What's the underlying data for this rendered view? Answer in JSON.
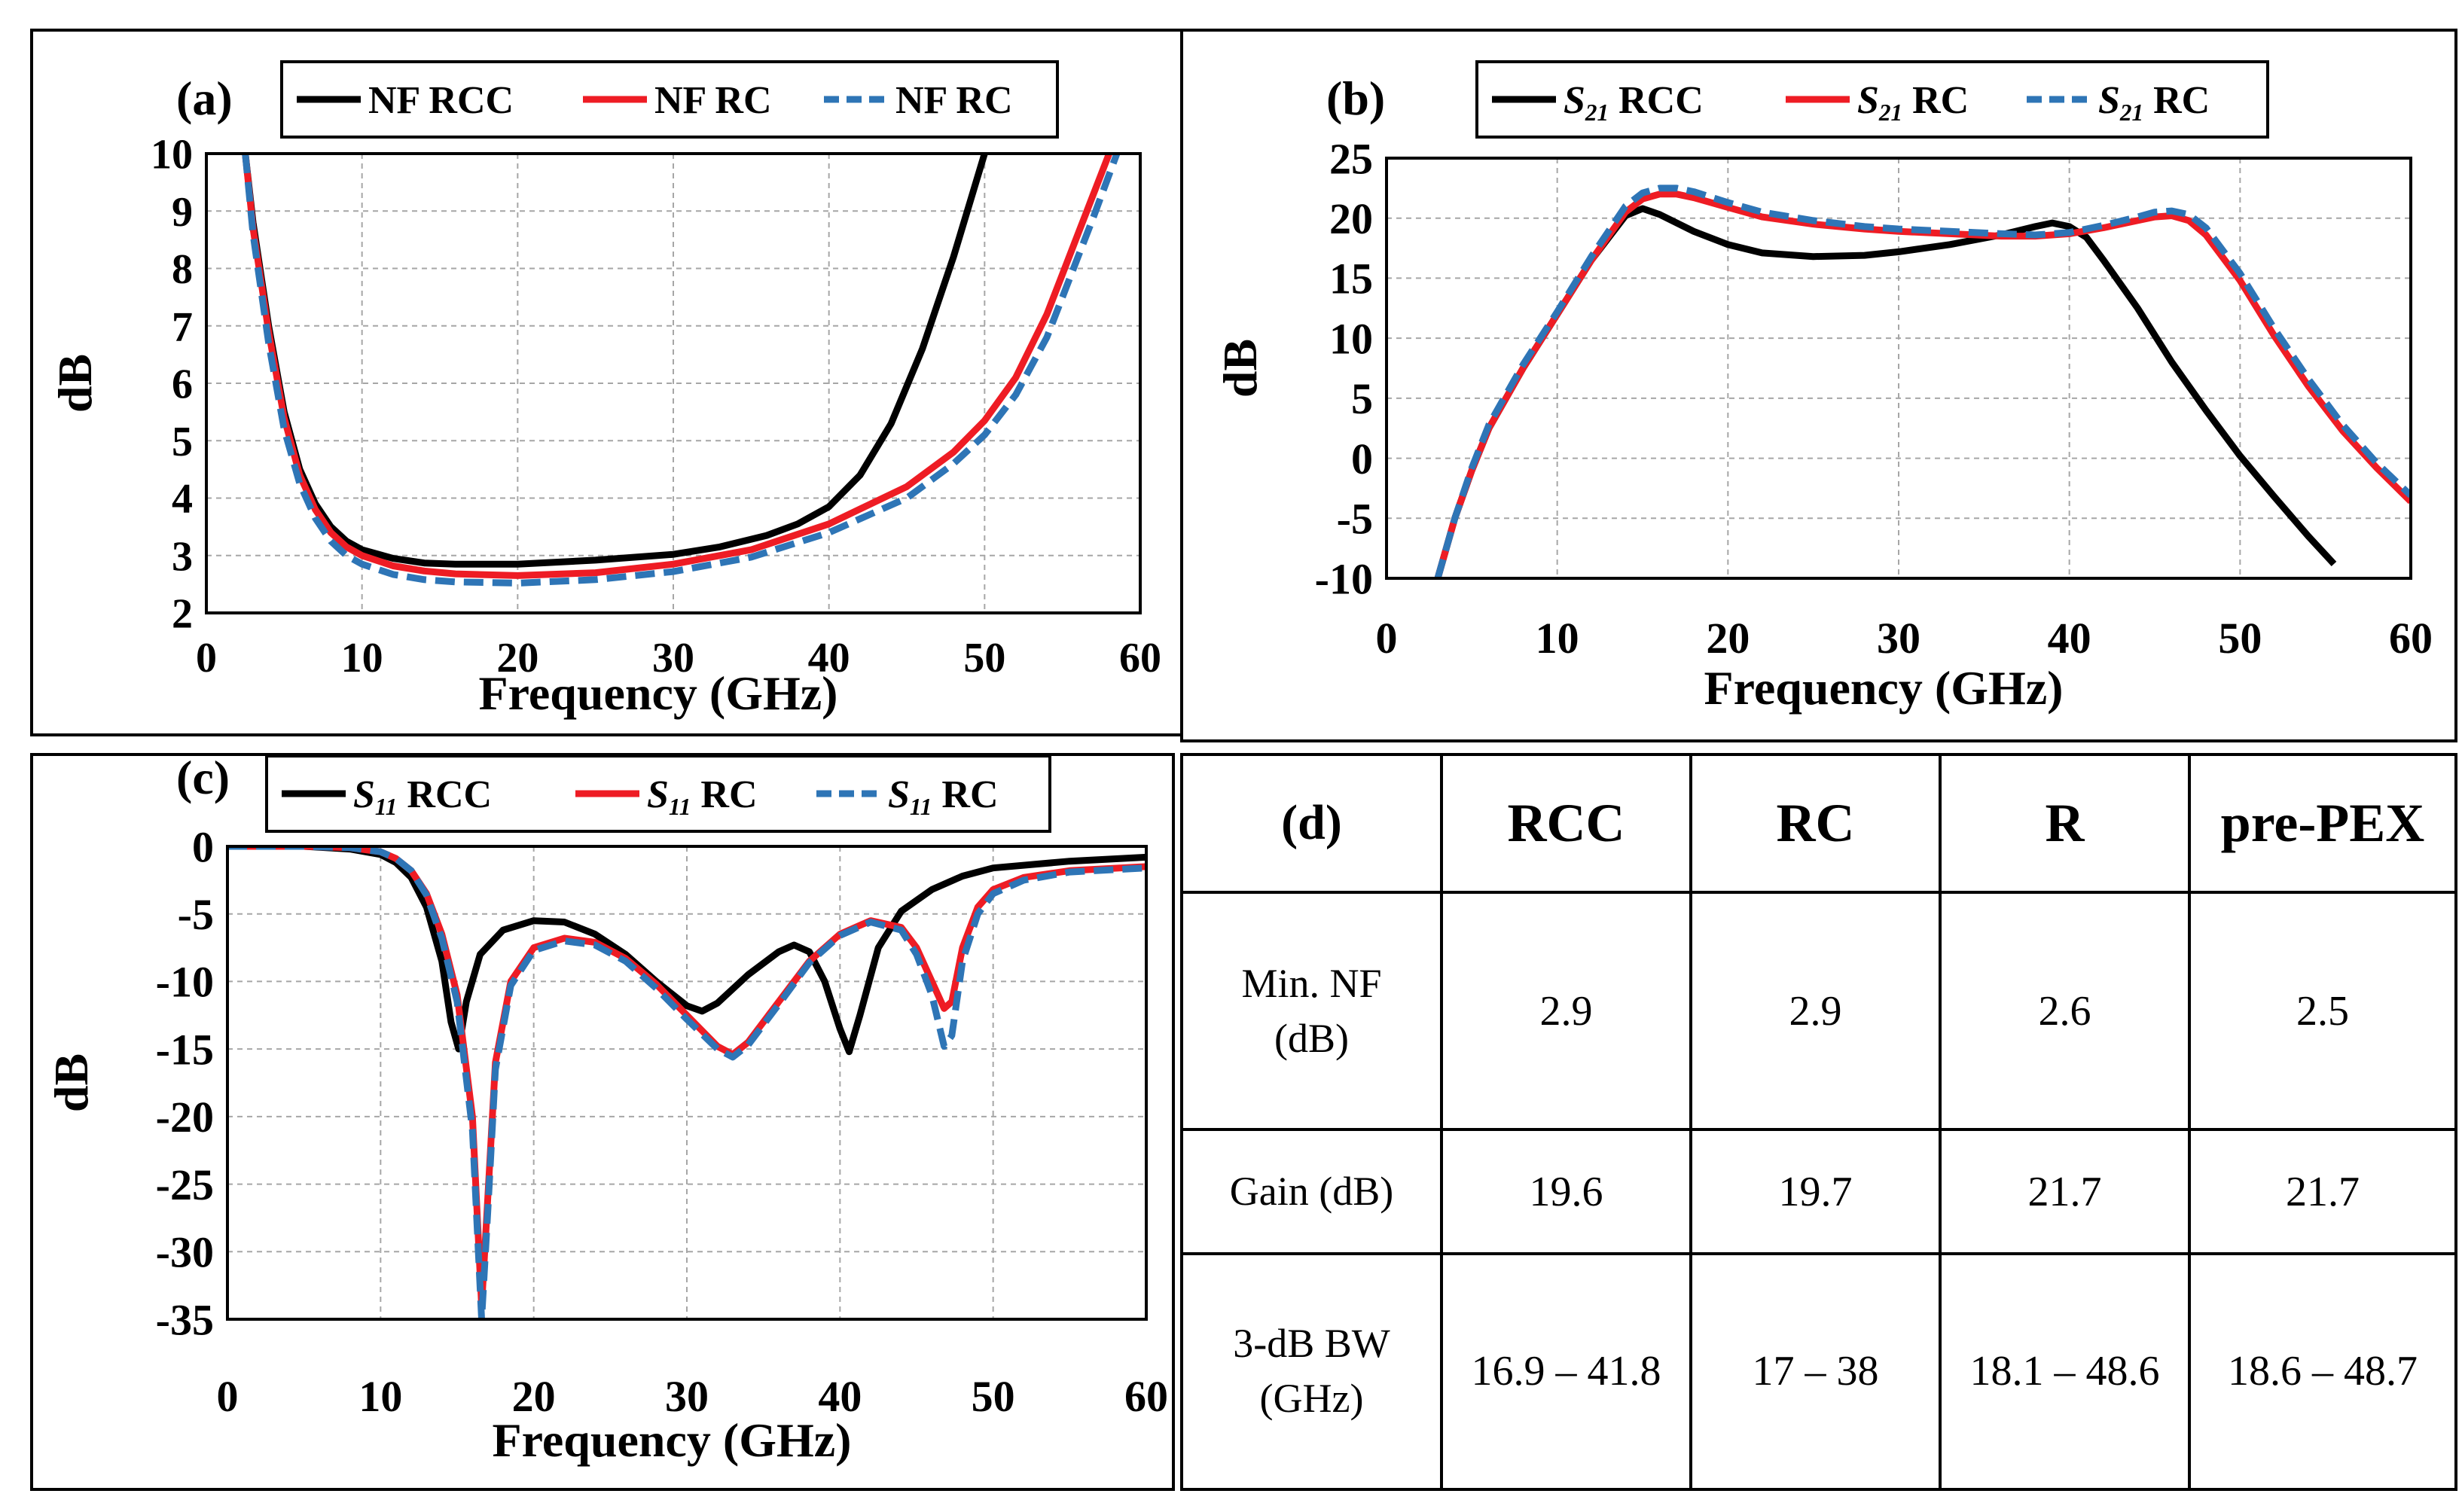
{
  "colors": {
    "rcc": "#000000",
    "rc": "#ee1c24",
    "r": "#2e75b6",
    "grid": "#a6a6a6"
  },
  "chart_data": [
    {
      "panel": "(a)",
      "type": "line",
      "title": "",
      "xlabel": "Frequency (GHz)",
      "ylabel": "dB",
      "xlim": [
        0,
        60
      ],
      "ylim": [
        2,
        10
      ],
      "xticks": [
        0,
        10,
        20,
        30,
        40,
        50,
        60
      ],
      "yticks": [
        2,
        3,
        4,
        5,
        6,
        7,
        8,
        9,
        10
      ],
      "grid": true,
      "legend_position": "top",
      "series": [
        {
          "name": "NF RCC",
          "label_main": "NF RCC",
          "style": "solid",
          "color": "#000000",
          "x": [
            2.5,
            3,
            4,
            5,
            6,
            7,
            8,
            9,
            10,
            12,
            14,
            16,
            20,
            25,
            30,
            33,
            36,
            38,
            40,
            42,
            44,
            46,
            47,
            48,
            49,
            50
          ],
          "y": [
            10,
            8.8,
            7,
            5.5,
            4.5,
            3.9,
            3.5,
            3.25,
            3.1,
            2.95,
            2.87,
            2.85,
            2.85,
            2.92,
            3.02,
            3.15,
            3.35,
            3.55,
            3.85,
            4.4,
            5.3,
            6.6,
            7.4,
            8.2,
            9.1,
            10
          ]
        },
        {
          "name": "NF RC",
          "label_main": "NF RC",
          "style": "solid",
          "color": "#ee1c24",
          "x": [
            2.5,
            3,
            4,
            5,
            6,
            7,
            8,
            9,
            10,
            12,
            14,
            16,
            20,
            25,
            30,
            35,
            40,
            45,
            48,
            50,
            52,
            54,
            55,
            56,
            57,
            58
          ],
          "y": [
            10,
            8.7,
            6.9,
            5.4,
            4.4,
            3.8,
            3.4,
            3.15,
            3.0,
            2.82,
            2.73,
            2.68,
            2.65,
            2.7,
            2.85,
            3.1,
            3.55,
            4.2,
            4.8,
            5.35,
            6.1,
            7.2,
            7.9,
            8.6,
            9.3,
            10
          ]
        },
        {
          "name": "NF RC",
          "label_main": "NF RC",
          "style": "dashed",
          "color": "#2e75b6",
          "x": [
            2.5,
            3,
            4,
            5,
            6,
            7,
            8,
            9,
            10,
            12,
            14,
            16,
            20,
            25,
            30,
            35,
            40,
            45,
            48,
            50,
            52,
            54,
            55,
            56,
            57,
            58.5
          ],
          "y": [
            10,
            8.6,
            6.7,
            5.2,
            4.25,
            3.65,
            3.25,
            3.0,
            2.85,
            2.67,
            2.58,
            2.54,
            2.52,
            2.58,
            2.72,
            2.97,
            3.4,
            4.0,
            4.6,
            5.1,
            5.8,
            6.8,
            7.5,
            8.2,
            8.9,
            10
          ]
        }
      ]
    },
    {
      "panel": "(b)",
      "type": "line",
      "title": "",
      "xlabel": "Frequency (GHz)",
      "ylabel": "dB",
      "xlim": [
        0,
        60
      ],
      "ylim": [
        -10,
        25
      ],
      "xticks": [
        0,
        10,
        20,
        30,
        40,
        50,
        60
      ],
      "yticks": [
        -10,
        -5,
        0,
        5,
        10,
        15,
        20,
        25
      ],
      "grid": true,
      "legend_position": "top",
      "series": [
        {
          "name": "S21 RCC",
          "label_main": "S",
          "label_sub": "21",
          "label_rest": " RCC",
          "style": "solid",
          "color": "#000000",
          "x": [
            3,
            4,
            5,
            6,
            8,
            10,
            12,
            14,
            15,
            16,
            18,
            20,
            22,
            25,
            28,
            30,
            33,
            36,
            38,
            39,
            40,
            41,
            42,
            44,
            46,
            48,
            50,
            52,
            54,
            55.5
          ],
          "y": [
            -10,
            -5,
            -1,
            2.5,
            7.5,
            12,
            16.5,
            20.2,
            20.8,
            20.3,
            18.9,
            17.8,
            17.1,
            16.8,
            16.9,
            17.2,
            17.8,
            18.6,
            19.3,
            19.6,
            19.3,
            18.4,
            16.5,
            12.5,
            8,
            4,
            0.2,
            -3.2,
            -6.5,
            -8.8
          ]
        },
        {
          "name": "S21 RC",
          "label_main": "S",
          "label_sub": "21",
          "label_rest": " RC",
          "style": "solid",
          "color": "#ee1c24",
          "x": [
            3,
            4,
            5,
            6,
            8,
            10,
            12,
            14,
            15,
            16,
            17,
            18,
            20,
            22,
            25,
            28,
            30,
            33,
            36,
            38,
            40,
            42,
            44,
            45,
            46,
            47,
            48,
            50,
            52,
            54,
            56,
            58,
            60
          ],
          "y": [
            -10,
            -5,
            -1,
            2.5,
            7.5,
            12,
            16.5,
            20.5,
            21.6,
            22,
            22,
            21.7,
            20.9,
            20.1,
            19.5,
            19.1,
            18.9,
            18.7,
            18.5,
            18.5,
            18.7,
            19.2,
            19.8,
            20.1,
            20.2,
            19.8,
            18.6,
            14.8,
            10.2,
            6,
            2.3,
            -0.8,
            -3.6
          ]
        },
        {
          "name": "S21  RC",
          "label_main": "S",
          "label_sub": "21",
          "label_rest": "  RC",
          "style": "dashed",
          "color": "#2e75b6",
          "x": [
            3,
            4,
            5,
            6,
            8,
            10,
            12,
            14,
            15,
            16,
            17,
            18,
            20,
            22,
            25,
            28,
            30,
            33,
            36,
            38,
            40,
            42,
            44,
            45,
            46,
            47,
            48,
            50,
            52,
            54,
            56,
            58,
            60
          ],
          "y": [
            -10,
            -5,
            -0.8,
            2.8,
            7.8,
            12.2,
            16.8,
            21,
            22.1,
            22.5,
            22.5,
            22.2,
            21.3,
            20.5,
            19.8,
            19.3,
            19.1,
            18.9,
            18.7,
            18.6,
            18.8,
            19.4,
            20.1,
            20.5,
            20.6,
            20.3,
            19.2,
            15.4,
            10.8,
            6.6,
            2.8,
            -0.4,
            -3.1
          ]
        }
      ]
    },
    {
      "panel": "(c)",
      "type": "line",
      "title": "",
      "xlabel": "Frequency (GHz)",
      "ylabel": "dB",
      "xlim": [
        0,
        60
      ],
      "ylim": [
        -35,
        0
      ],
      "xticks": [
        0,
        10,
        20,
        30,
        40,
        50,
        60
      ],
      "yticks": [
        -35,
        -30,
        -25,
        -20,
        -15,
        -10,
        -5,
        0
      ],
      "grid": true,
      "legend_position": "top",
      "series": [
        {
          "name": "S11 RCC",
          "label_main": "S",
          "label_sub": "11",
          "label_rest": " RCC",
          "style": "solid",
          "color": "#000000",
          "x": [
            0,
            5,
            8,
            10,
            11,
            12,
            13,
            14,
            14.6,
            15.1,
            15.6,
            16.5,
            18,
            20,
            22,
            24,
            26,
            28,
            30,
            31,
            32,
            34,
            36,
            37,
            38,
            39,
            40,
            40.6,
            41.3,
            42.5,
            44,
            46,
            48,
            50,
            55,
            60
          ],
          "y": [
            0,
            0,
            -0.2,
            -0.6,
            -1.2,
            -2.3,
            -4.5,
            -8.5,
            -13,
            -15,
            -11.5,
            -8,
            -6.2,
            -5.5,
            -5.6,
            -6.5,
            -8,
            -10,
            -11.8,
            -12.2,
            -11.6,
            -9.5,
            -7.8,
            -7.3,
            -7.8,
            -10,
            -13.5,
            -15.2,
            -12.5,
            -7.5,
            -4.8,
            -3.2,
            -2.2,
            -1.6,
            -1.1,
            -0.8
          ]
        },
        {
          "name": "S11 RC",
          "label_main": "S",
          "label_sub": "11",
          "label_rest": " RC",
          "style": "solid",
          "color": "#ee1c24",
          "x": [
            0,
            5,
            8,
            10,
            11,
            12,
            13,
            14,
            15,
            16,
            16.6,
            17,
            17.5,
            18.5,
            20,
            22,
            24,
            26,
            28,
            30,
            32,
            33,
            34,
            36,
            38,
            40,
            42,
            44,
            45,
            46,
            46.8,
            47.3,
            48,
            49,
            50,
            52,
            55,
            60
          ],
          "y": [
            0,
            0,
            -0.1,
            -0.4,
            -0.9,
            -1.8,
            -3.5,
            -6.5,
            -11,
            -20,
            -34,
            -26,
            -16,
            -10,
            -7.5,
            -6.8,
            -7.1,
            -8.3,
            -10.2,
            -12.5,
            -14.8,
            -15.4,
            -14.5,
            -11.5,
            -8.5,
            -6.5,
            -5.5,
            -6,
            -7.5,
            -10,
            -12,
            -11.5,
            -7.5,
            -4.5,
            -3.2,
            -2.3,
            -1.8,
            -1.5
          ]
        },
        {
          "name": "S11  RC",
          "label_main": "S",
          "label_sub": "11",
          "label_rest": "  RC",
          "style": "dashed",
          "color": "#2e75b6",
          "x": [
            0,
            5,
            8,
            10,
            11,
            12,
            13,
            14,
            15,
            16,
            16.6,
            17,
            17.5,
            18.5,
            20,
            22,
            24,
            26,
            28,
            30,
            32,
            33,
            34,
            36,
            38,
            40,
            42,
            44,
            45,
            46,
            46.8,
            47.3,
            48,
            49,
            50,
            52,
            55,
            60
          ],
          "y": [
            0,
            0,
            -0.1,
            -0.4,
            -0.9,
            -1.8,
            -3.6,
            -6.8,
            -11.5,
            -21,
            -35,
            -27,
            -16.5,
            -10.3,
            -7.7,
            -7,
            -7.3,
            -8.5,
            -10.5,
            -12.8,
            -15,
            -15.6,
            -14.7,
            -11.7,
            -8.6,
            -6.6,
            -5.6,
            -6.2,
            -8,
            -11,
            -14.8,
            -14,
            -8.5,
            -5,
            -3.5,
            -2.5,
            -1.9,
            -1.6
          ]
        }
      ]
    },
    {
      "panel": "(d)",
      "type": "table",
      "tag": "(d)",
      "columns": [
        "RCC",
        "RC",
        "R",
        "pre-PEX"
      ],
      "rows": [
        {
          "label_line1": "Min. NF",
          "label_line2": "(dB)",
          "values": [
            "2.9",
            "2.9",
            "2.6",
            "2.5"
          ]
        },
        {
          "label_line1": "Gain (dB)",
          "label_line2": "",
          "values": [
            "19.6",
            "19.7",
            "21.7",
            "21.7"
          ]
        },
        {
          "label_line1": "3-dB BW",
          "label_line2": "(GHz)",
          "values": [
            "16.9 – 41.8",
            "17 – 38",
            "18.1 – 48.6",
            "18.6 – 48.7"
          ]
        }
      ]
    }
  ]
}
